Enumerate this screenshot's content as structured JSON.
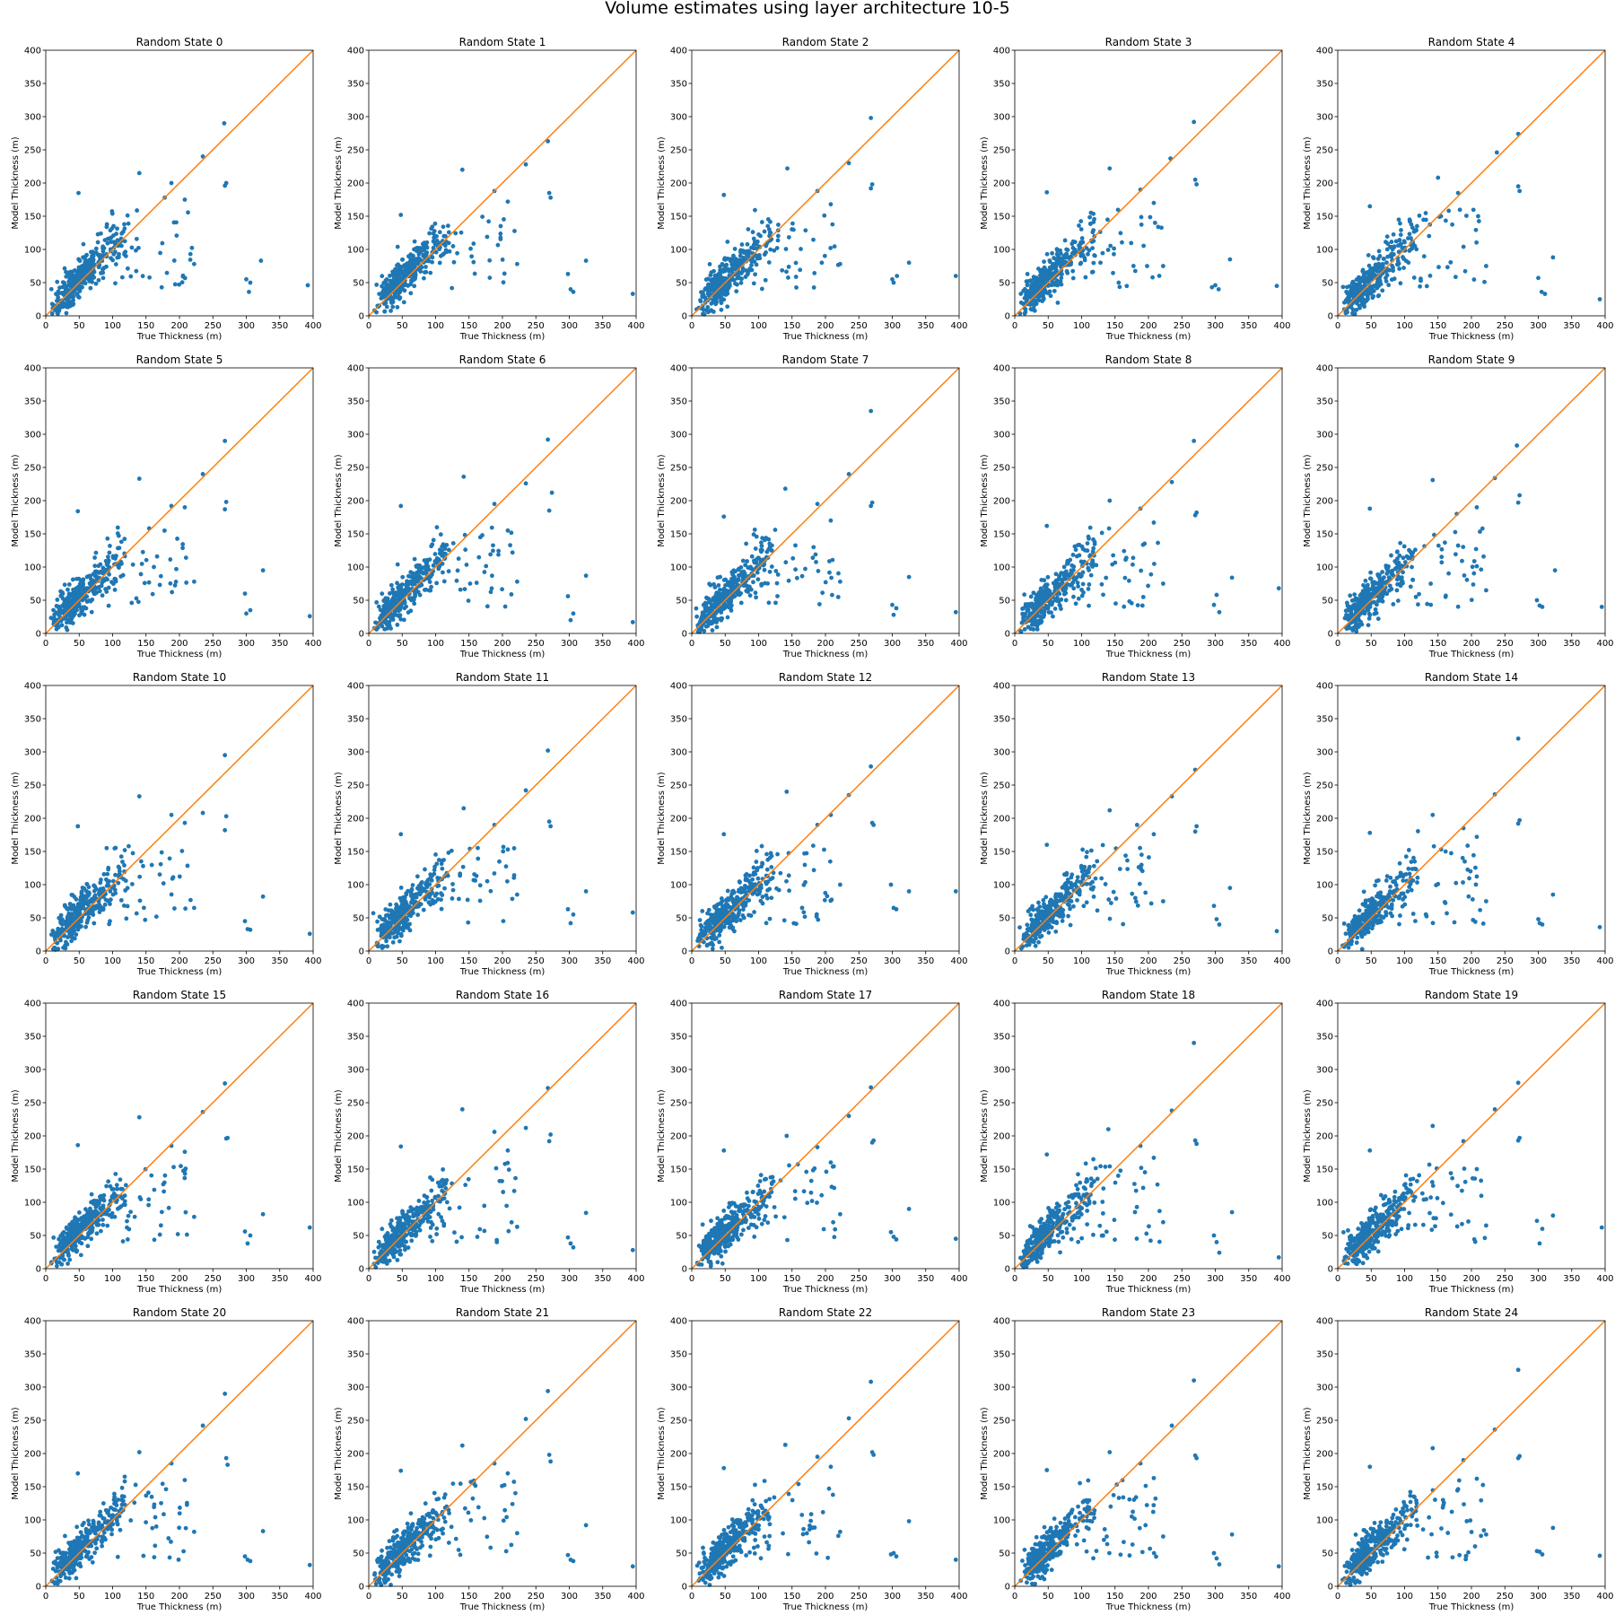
{
  "figure": {
    "title": "Volume estimates using layer architecture 10-5",
    "xlabel": "True Thickness (m)",
    "ylabel": "Model Thickness (m)"
  },
  "chart_data": {
    "type": "scatter",
    "title": "Volume estimates using layer architecture 10-5",
    "xlabel": "True Thickness (m)",
    "ylabel": "Model Thickness (m)",
    "xlim": [
      0,
      400
    ],
    "ylim": [
      0,
      400
    ],
    "ticks": [
      0,
      50,
      100,
      150,
      200,
      250,
      300,
      350,
      400
    ],
    "grid": false,
    "point_color": "#1f77b4",
    "line_color": "#ff7f0e",
    "identity_line": {
      "x": [
        0,
        400
      ],
      "y": [
        0,
        400
      ]
    },
    "panel_titles": [
      "Random State 0",
      "Random State 1",
      "Random State 2",
      "Random State 3",
      "Random State 4",
      "Random State 5",
      "Random State 6",
      "Random State 7",
      "Random State 8",
      "Random State 9",
      "Random State 10",
      "Random State 11",
      "Random State 12",
      "Random State 13",
      "Random State 14",
      "Random State 15",
      "Random State 16",
      "Random State 17",
      "Random State 18",
      "Random State 19",
      "Random State 20",
      "Random State 21",
      "Random State 22",
      "Random State 23",
      "Random State 24"
    ],
    "outliers": [
      [
        [
          267,
          290
        ],
        [
          235,
          240
        ],
        [
          270,
          200
        ],
        [
          268,
          196
        ],
        [
          208,
          175
        ],
        [
          188,
          200
        ],
        [
          178,
          178
        ],
        [
          140,
          215
        ],
        [
          49,
          185
        ],
        [
          392,
          46
        ],
        [
          322,
          83
        ],
        [
          306,
          50
        ],
        [
          300,
          55
        ],
        [
          304,
          36
        ],
        [
          222,
          78
        ]
      ],
      [
        [
          268,
          263
        ],
        [
          235,
          228
        ],
        [
          270,
          185
        ],
        [
          272,
          178
        ],
        [
          208,
          172
        ],
        [
          188,
          188
        ],
        [
          140,
          220
        ],
        [
          48,
          152
        ],
        [
          395,
          33
        ],
        [
          325,
          83
        ],
        [
          298,
          63
        ],
        [
          302,
          40
        ],
        [
          306,
          36
        ],
        [
          222,
          78
        ]
      ],
      [
        [
          268,
          298
        ],
        [
          235,
          230
        ],
        [
          270,
          198
        ],
        [
          268,
          192
        ],
        [
          208,
          168
        ],
        [
          188,
          188
        ],
        [
          143,
          222
        ],
        [
          48,
          182
        ],
        [
          395,
          60
        ],
        [
          325,
          80
        ],
        [
          300,
          55
        ],
        [
          307,
          60
        ],
        [
          302,
          50
        ],
        [
          222,
          78
        ]
      ],
      [
        [
          268,
          292
        ],
        [
          233,
          237
        ],
        [
          272,
          198
        ],
        [
          270,
          205
        ],
        [
          208,
          170
        ],
        [
          188,
          190
        ],
        [
          142,
          222
        ],
        [
          48,
          186
        ],
        [
          392,
          45
        ],
        [
          322,
          85
        ],
        [
          300,
          46
        ],
        [
          305,
          40
        ],
        [
          295,
          43
        ],
        [
          222,
          75
        ]
      ],
      [
        [
          270,
          274
        ],
        [
          238,
          246
        ],
        [
          272,
          188
        ],
        [
          270,
          195
        ],
        [
          210,
          150
        ],
        [
          180,
          185
        ],
        [
          150,
          208
        ],
        [
          48,
          165
        ],
        [
          392,
          25
        ],
        [
          322,
          88
        ],
        [
          300,
          57
        ],
        [
          305,
          36
        ],
        [
          310,
          33
        ],
        [
          222,
          75
        ]
      ],
      [
        [
          268,
          290
        ],
        [
          235,
          240
        ],
        [
          270,
          198
        ],
        [
          268,
          187
        ],
        [
          208,
          190
        ],
        [
          188,
          192
        ],
        [
          140,
          233
        ],
        [
          48,
          184
        ],
        [
          395,
          26
        ],
        [
          325,
          95
        ],
        [
          298,
          60
        ],
        [
          306,
          35
        ],
        [
          300,
          30
        ],
        [
          222,
          78
        ]
      ],
      [
        [
          268,
          292
        ],
        [
          235,
          226
        ],
        [
          274,
          212
        ],
        [
          270,
          185
        ],
        [
          208,
          155
        ],
        [
          188,
          195
        ],
        [
          142,
          236
        ],
        [
          48,
          192
        ],
        [
          395,
          17
        ],
        [
          325,
          87
        ],
        [
          298,
          56
        ],
        [
          306,
          30
        ],
        [
          302,
          20
        ],
        [
          222,
          78
        ]
      ],
      [
        [
          268,
          335
        ],
        [
          235,
          240
        ],
        [
          270,
          197
        ],
        [
          268,
          192
        ],
        [
          208,
          170
        ],
        [
          188,
          195
        ],
        [
          140,
          218
        ],
        [
          48,
          176
        ],
        [
          395,
          32
        ],
        [
          325,
          85
        ],
        [
          300,
          43
        ],
        [
          306,
          38
        ],
        [
          302,
          28
        ],
        [
          222,
          78
        ]
      ],
      [
        [
          268,
          290
        ],
        [
          235,
          228
        ],
        [
          272,
          182
        ],
        [
          270,
          178
        ],
        [
          208,
          167
        ],
        [
          188,
          188
        ],
        [
          142,
          200
        ],
        [
          48,
          162
        ],
        [
          395,
          68
        ],
        [
          325,
          84
        ],
        [
          298,
          43
        ],
        [
          306,
          32
        ],
        [
          302,
          58
        ],
        [
          222,
          75
        ]
      ],
      [
        [
          268,
          283
        ],
        [
          235,
          234
        ],
        [
          272,
          208
        ],
        [
          270,
          197
        ],
        [
          208,
          190
        ],
        [
          178,
          180
        ],
        [
          142,
          231
        ],
        [
          48,
          188
        ],
        [
          395,
          40
        ],
        [
          325,
          95
        ],
        [
          298,
          50
        ],
        [
          306,
          40
        ],
        [
          302,
          42
        ],
        [
          222,
          65
        ]
      ],
      [
        [
          268,
          295
        ],
        [
          235,
          208
        ],
        [
          270,
          203
        ],
        [
          268,
          182
        ],
        [
          208,
          193
        ],
        [
          188,
          205
        ],
        [
          140,
          233
        ],
        [
          48,
          188
        ],
        [
          395,
          26
        ],
        [
          325,
          82
        ],
        [
          298,
          45
        ],
        [
          306,
          32
        ],
        [
          302,
          33
        ],
        [
          222,
          65
        ]
      ],
      [
        [
          268,
          302
        ],
        [
          235,
          242
        ],
        [
          270,
          195
        ],
        [
          272,
          188
        ],
        [
          208,
          153
        ],
        [
          188,
          190
        ],
        [
          142,
          215
        ],
        [
          48,
          176
        ],
        [
          395,
          58
        ],
        [
          325,
          90
        ],
        [
          298,
          63
        ],
        [
          306,
          55
        ],
        [
          302,
          42
        ],
        [
          222,
          85
        ]
      ],
      [
        [
          268,
          278
        ],
        [
          235,
          235
        ],
        [
          270,
          193
        ],
        [
          272,
          190
        ],
        [
          208,
          205
        ],
        [
          188,
          190
        ],
        [
          142,
          240
        ],
        [
          48,
          176
        ],
        [
          395,
          90
        ],
        [
          325,
          90
        ],
        [
          298,
          100
        ],
        [
          306,
          63
        ],
        [
          302,
          65
        ],
        [
          222,
          100
        ]
      ],
      [
        [
          270,
          273
        ],
        [
          235,
          233
        ],
        [
          272,
          188
        ],
        [
          270,
          180
        ],
        [
          208,
          176
        ],
        [
          183,
          190
        ],
        [
          142,
          212
        ],
        [
          48,
          160
        ],
        [
          392,
          30
        ],
        [
          322,
          95
        ],
        [
          298,
          68
        ],
        [
          306,
          40
        ],
        [
          302,
          48
        ],
        [
          222,
          75
        ]
      ],
      [
        [
          270,
          320
        ],
        [
          235,
          236
        ],
        [
          272,
          197
        ],
        [
          270,
          192
        ],
        [
          208,
          172
        ],
        [
          188,
          185
        ],
        [
          142,
          205
        ],
        [
          48,
          178
        ],
        [
          392,
          36
        ],
        [
          322,
          85
        ],
        [
          300,
          48
        ],
        [
          306,
          40
        ],
        [
          302,
          42
        ],
        [
          222,
          75
        ]
      ],
      [
        [
          268,
          279
        ],
        [
          235,
          236
        ],
        [
          272,
          197
        ],
        [
          270,
          196
        ],
        [
          208,
          176
        ],
        [
          188,
          185
        ],
        [
          140,
          228
        ],
        [
          48,
          186
        ],
        [
          395,
          62
        ],
        [
          325,
          82
        ],
        [
          298,
          56
        ],
        [
          306,
          50
        ],
        [
          302,
          38
        ],
        [
          222,
          78
        ]
      ],
      [
        [
          268,
          272
        ],
        [
          235,
          212
        ],
        [
          272,
          202
        ],
        [
          270,
          192
        ],
        [
          208,
          178
        ],
        [
          188,
          206
        ],
        [
          140,
          240
        ],
        [
          48,
          184
        ],
        [
          395,
          28
        ],
        [
          325,
          84
        ],
        [
          298,
          47
        ],
        [
          306,
          32
        ],
        [
          302,
          38
        ],
        [
          222,
          63
        ]
      ],
      [
        [
          268,
          273
        ],
        [
          235,
          230
        ],
        [
          272,
          193
        ],
        [
          270,
          190
        ],
        [
          208,
          160
        ],
        [
          188,
          183
        ],
        [
          142,
          200
        ],
        [
          48,
          178
        ],
        [
          395,
          45
        ],
        [
          325,
          90
        ],
        [
          298,
          55
        ],
        [
          306,
          44
        ],
        [
          302,
          48
        ],
        [
          222,
          82
        ]
      ],
      [
        [
          268,
          340
        ],
        [
          235,
          238
        ],
        [
          272,
          188
        ],
        [
          270,
          193
        ],
        [
          208,
          167
        ],
        [
          188,
          185
        ],
        [
          140,
          210
        ],
        [
          48,
          172
        ],
        [
          395,
          17
        ],
        [
          325,
          85
        ],
        [
          298,
          50
        ],
        [
          306,
          24
        ],
        [
          302,
          40
        ],
        [
          222,
          70
        ]
      ],
      [
        [
          270,
          280
        ],
        [
          235,
          240
        ],
        [
          272,
          197
        ],
        [
          270,
          193
        ],
        [
          208,
          150
        ],
        [
          188,
          192
        ],
        [
          142,
          215
        ],
        [
          48,
          178
        ],
        [
          395,
          62
        ],
        [
          322,
          80
        ],
        [
          298,
          72
        ],
        [
          306,
          60
        ],
        [
          302,
          38
        ],
        [
          222,
          65
        ]
      ],
      [
        [
          268,
          290
        ],
        [
          235,
          242
        ],
        [
          270,
          193
        ],
        [
          272,
          183
        ],
        [
          208,
          160
        ],
        [
          188,
          185
        ],
        [
          140,
          202
        ],
        [
          48,
          170
        ],
        [
          395,
          32
        ],
        [
          325,
          83
        ],
        [
          298,
          45
        ],
        [
          306,
          38
        ],
        [
          302,
          40
        ],
        [
          222,
          82
        ]
      ],
      [
        [
          268,
          294
        ],
        [
          235,
          252
        ],
        [
          270,
          198
        ],
        [
          272,
          188
        ],
        [
          208,
          170
        ],
        [
          188,
          185
        ],
        [
          140,
          212
        ],
        [
          48,
          174
        ],
        [
          395,
          30
        ],
        [
          325,
          92
        ],
        [
          298,
          47
        ],
        [
          306,
          38
        ],
        [
          302,
          40
        ],
        [
          222,
          80
        ]
      ],
      [
        [
          268,
          308
        ],
        [
          235,
          253
        ],
        [
          272,
          198
        ],
        [
          270,
          202
        ],
        [
          208,
          180
        ],
        [
          188,
          195
        ],
        [
          140,
          213
        ],
        [
          48,
          178
        ],
        [
          395,
          40
        ],
        [
          325,
          98
        ],
        [
          298,
          48
        ],
        [
          306,
          45
        ],
        [
          302,
          50
        ],
        [
          222,
          82
        ]
      ],
      [
        [
          268,
          310
        ],
        [
          235,
          242
        ],
        [
          272,
          193
        ],
        [
          270,
          197
        ],
        [
          208,
          163
        ],
        [
          188,
          185
        ],
        [
          142,
          202
        ],
        [
          48,
          175
        ],
        [
          395,
          30
        ],
        [
          325,
          78
        ],
        [
          298,
          50
        ],
        [
          306,
          33
        ],
        [
          302,
          42
        ],
        [
          222,
          75
        ]
      ],
      [
        [
          270,
          326
        ],
        [
          235,
          236
        ],
        [
          272,
          196
        ],
        [
          270,
          193
        ],
        [
          208,
          162
        ],
        [
          188,
          190
        ],
        [
          142,
          208
        ],
        [
          48,
          180
        ],
        [
          392,
          46
        ],
        [
          322,
          88
        ],
        [
          298,
          53
        ],
        [
          306,
          48
        ],
        [
          302,
          52
        ],
        [
          222,
          78
        ]
      ]
    ]
  }
}
